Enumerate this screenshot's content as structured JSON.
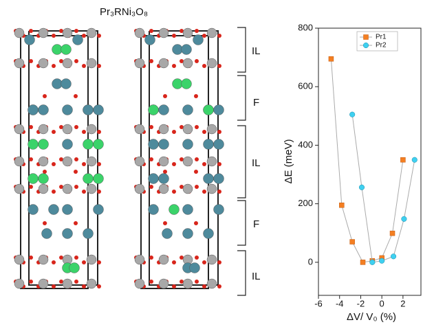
{
  "figure": {
    "title": "Pr₃RNi₃O₈",
    "layer_labels": [
      "IL",
      "F",
      "IL",
      "F",
      "IL"
    ]
  },
  "chart_data": {
    "type": "line",
    "x_label": "ΔV/ V₀ (%)",
    "y_label": "ΔE (meV)",
    "xlim": [
      -6,
      3.7
    ],
    "ylim": [
      -113,
      800
    ],
    "xticks": [
      -6,
      -4,
      -2,
      0,
      2
    ],
    "yticks": [
      0,
      200,
      400,
      600,
      800
    ],
    "legend": "upper right",
    "series": [
      {
        "name": "Pr1",
        "color": "#f47f22",
        "marker": "square",
        "x": [
          -4.8,
          -3.8,
          -2.8,
          -1.8,
          -0.9,
          0,
          1,
          2
        ],
        "values": [
          695,
          195,
          70,
          0,
          5,
          15,
          99,
          350
        ]
      },
      {
        "name": "Pr2",
        "color": "#3fd0f0",
        "marker": "circle",
        "x": [
          -2.8,
          -1.9,
          -0.9,
          0,
          1.1,
          2.1,
          3.1
        ],
        "values": [
          505,
          256,
          0,
          5,
          20,
          148,
          350
        ]
      }
    ]
  }
}
